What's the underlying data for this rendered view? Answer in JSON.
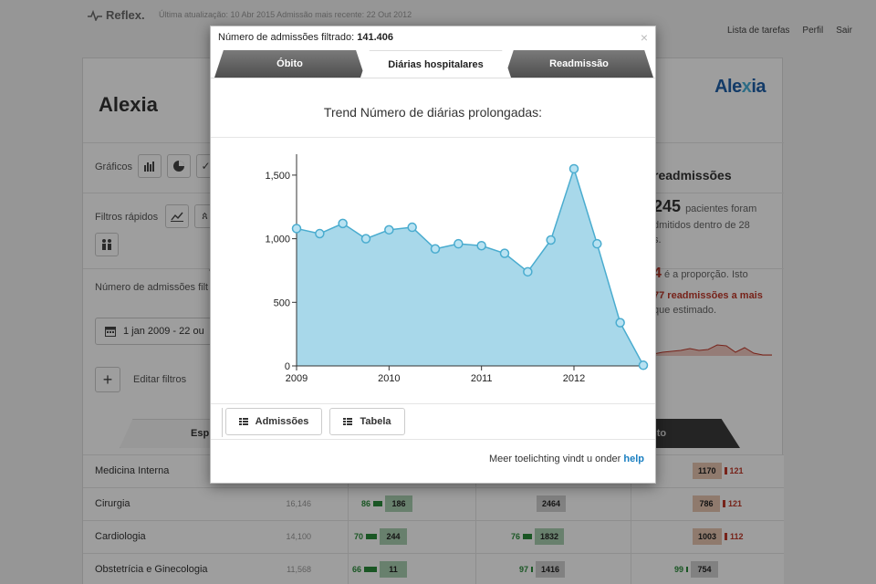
{
  "app": {
    "brand": "Reflex.",
    "meta": "Última atualização: 10 Abr 2015  Admissão mais recente: 22 Out 2012",
    "nav": [
      "Lista de tarefas",
      "Perfil",
      "Sair"
    ]
  },
  "panel": {
    "title": "Alexia",
    "logo_a": "Ale",
    "logo_b": "x",
    "logo_c": "ia",
    "graficos_label": "Gráficos",
    "filtros_label": "Filtros rápidos",
    "admissoes_label": "Número de admissões filt",
    "date_range": "1 jan 2009 - 22 ou",
    "edit_filters": "Editar filtros"
  },
  "right_panel": {
    "title": "readmissões",
    "big_number": "245",
    "text1": "pacientes foram",
    "text2": "dmitidos dentro de 28",
    "text3": "s.",
    "ratio_value": "4",
    "ratio_text": "é a proporção. Isto",
    "readm_text": "77 readmissões a mais",
    "estimated": "que estimado."
  },
  "bg_tabs": {
    "left": "Esp",
    "right": "nto"
  },
  "rows": [
    {
      "name": "Medicina Interna",
      "count": "",
      "c1n": "",
      "c1v": "",
      "c2n": "",
      "c2v": "",
      "c3n": "1170",
      "c3v": "121"
    },
    {
      "name": "Cirurgia",
      "count": "16,146",
      "c1n": "86",
      "c1v": "186",
      "c2n": "",
      "c2v": "2464",
      "c3n": "786",
      "c3v": "121"
    },
    {
      "name": "Cardiologia",
      "count": "14,100",
      "c1n": "70",
      "c1v": "244",
      "c2n": "76",
      "c2v": "1832",
      "c3n": "1003",
      "c3v": "112"
    },
    {
      "name": "Obstetrícia e Ginecologia",
      "count": "11,568",
      "c1n": "66",
      "c1v": "11",
      "c2n": "97",
      "c2v": "1416",
      "c3n": "99",
      "c3v": "754"
    }
  ],
  "modal": {
    "head_label": "Número de admissões filtrado:",
    "head_value": "141.406",
    "close": "×",
    "tabs": [
      "Óbito",
      "Diárias hospitalares",
      "Readmissão"
    ],
    "chart_title": "Trend Número de diárias prolongadas:",
    "btn_admissoes": "Admissões",
    "btn_tabela": "Tabela",
    "help_text": "Meer toelichting vindt u onder",
    "help_link": "help"
  },
  "colors": {
    "area_fill": "#a8d8ea",
    "line": "#4aaccf",
    "point_fill": "#b8e2f2"
  },
  "chart_data": {
    "type": "area",
    "title": "Trend Número de diárias prolongadas:",
    "xlabel": "",
    "ylabel": "",
    "x_ticks": [
      "2009",
      "2010",
      "2011",
      "2012"
    ],
    "y_ticks": [
      "0",
      "500",
      "1,000",
      "1,500"
    ],
    "ylim": [
      0,
      1650
    ],
    "xlim": [
      2009.0,
      2012.75
    ],
    "grid": false,
    "series": [
      {
        "x": [
          2009.0,
          2009.25,
          2009.5,
          2009.75,
          2010.0,
          2010.25,
          2010.5,
          2010.75,
          2011.0,
          2011.25,
          2011.5,
          2011.75,
          2012.0,
          2012.25,
          2012.5,
          2012.75
        ],
        "values": [
          1080,
          1040,
          1120,
          1000,
          1070,
          1090,
          920,
          960,
          945,
          885,
          740,
          990,
          1550,
          960,
          340,
          5
        ]
      }
    ]
  }
}
